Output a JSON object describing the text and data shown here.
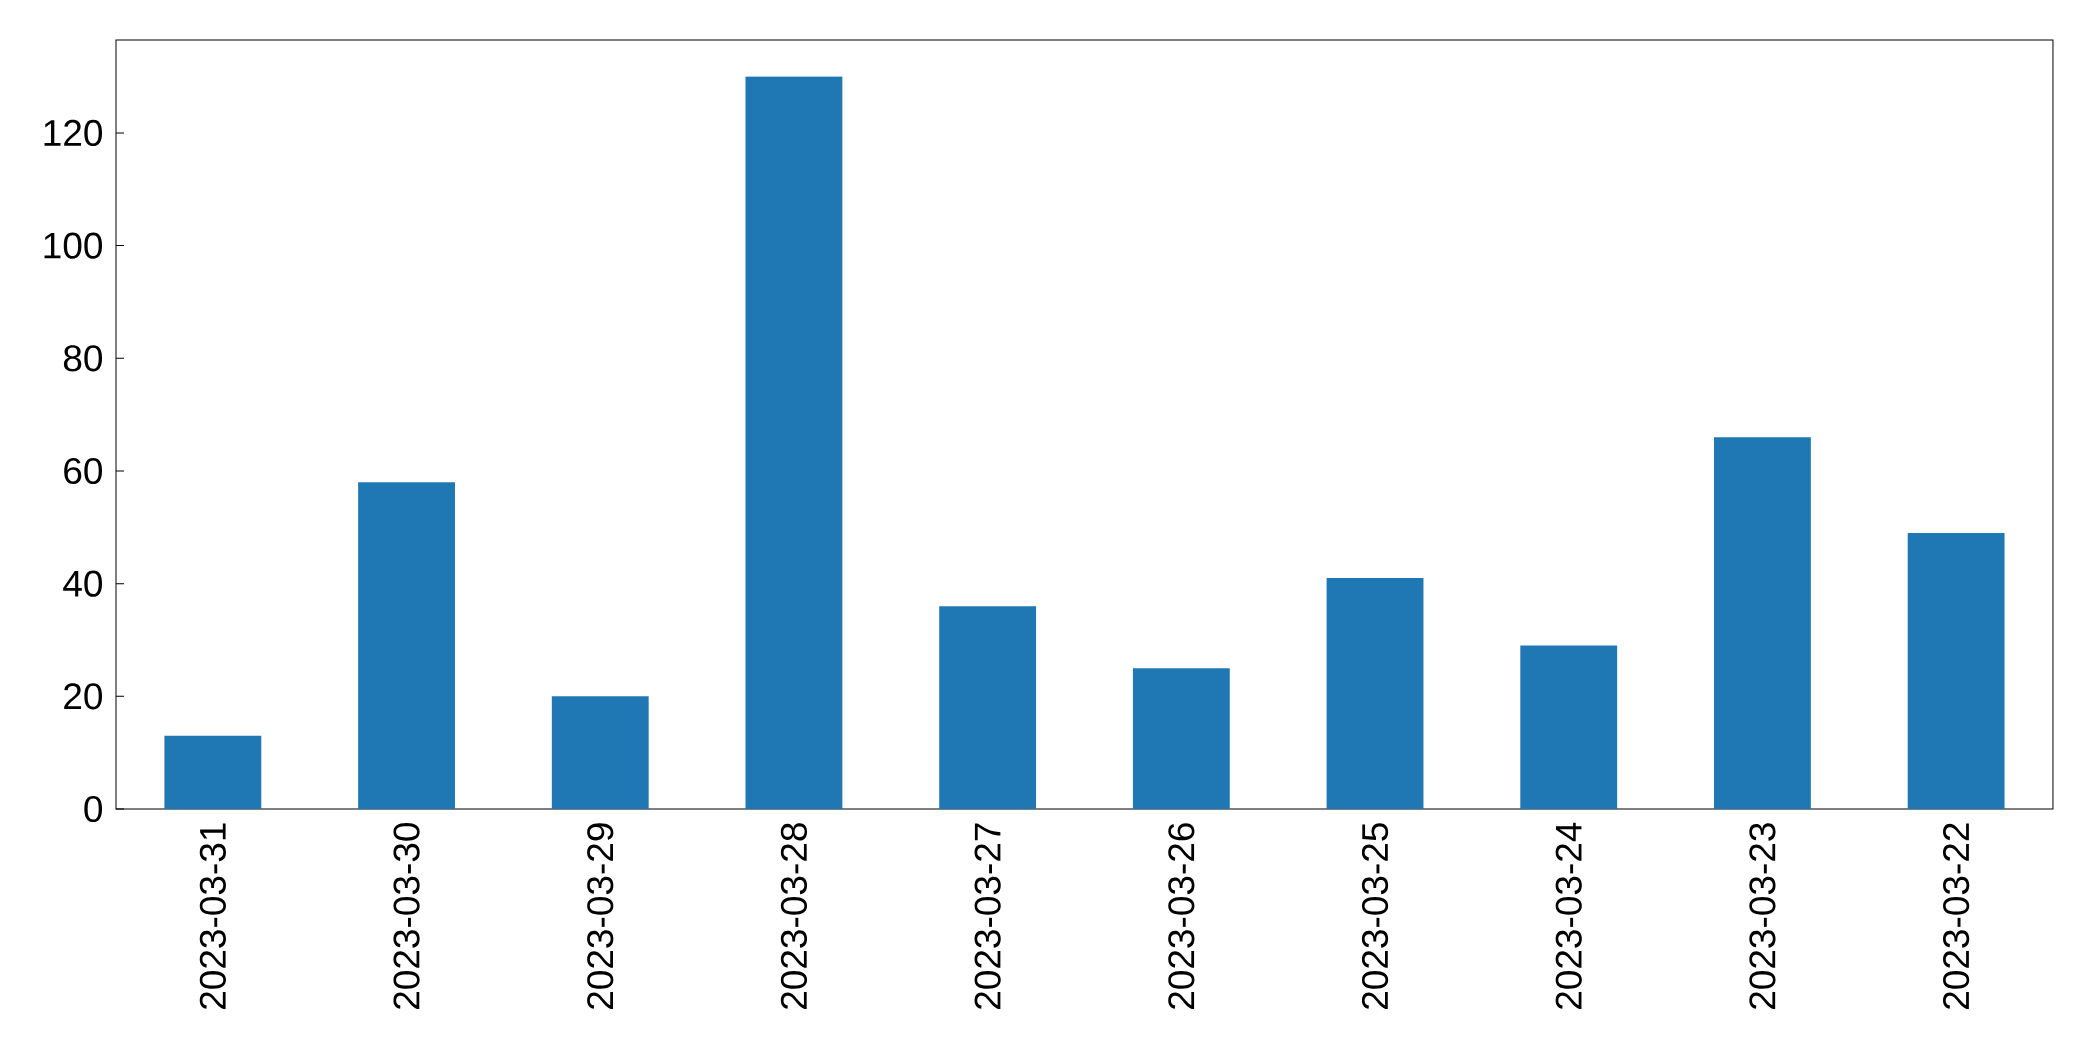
{
  "chart_data": {
    "type": "bar",
    "categories": [
      "2023-03-31",
      "2023-03-30",
      "2023-03-29",
      "2023-03-28",
      "2023-03-27",
      "2023-03-26",
      "2023-03-25",
      "2023-03-24",
      "2023-03-23",
      "2023-03-22"
    ],
    "values": [
      13,
      58,
      20,
      130,
      36,
      25,
      41,
      29,
      66,
      49
    ],
    "color": "#1f77b4",
    "ylim": [
      0,
      136.5
    ],
    "yticks": [
      0,
      20,
      40,
      60,
      80,
      100,
      120
    ]
  }
}
